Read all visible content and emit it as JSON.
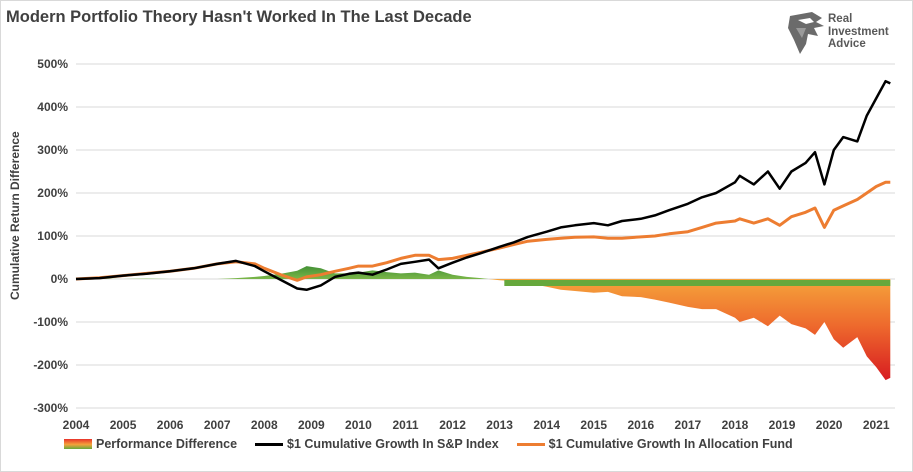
{
  "title": "Modern Portfolio Theory Hasn't Worked In The Last Decade",
  "logo": {
    "lines": [
      "Real",
      "Investment",
      "Advice"
    ],
    "icon": "eagle-head-icon"
  },
  "colors": {
    "sp": "#000000",
    "fund": "#ed7d31",
    "diff_neg_top": "#f5a33b",
    "diff_neg_bottom": "#d71920",
    "diff_pos": "#4c9a3a",
    "grid": "#d9d9d9",
    "text": "#404040"
  },
  "chart_data": {
    "type": "line",
    "title": "Modern Portfolio Theory Hasn't Worked In The Last Decade",
    "xlabel": "",
    "ylabel": "Cumulative Return Difference",
    "ylim": [
      -300,
      500
    ],
    "y_ticks": [
      "500%",
      "400%",
      "300%",
      "200%",
      "100%",
      "0%",
      "-100%",
      "-200%",
      "-300%"
    ],
    "y_tick_values": [
      500,
      400,
      300,
      200,
      100,
      0,
      -100,
      -200,
      -300
    ],
    "x_ticks": [
      "2004",
      "2005",
      "2006",
      "2007",
      "2008",
      "2009",
      "2010",
      "2011",
      "2012",
      "2013",
      "2014",
      "2015",
      "2016",
      "2017",
      "2018",
      "2019",
      "2020",
      "2021"
    ],
    "xlim": [
      2004,
      2021.4
    ],
    "grid": true,
    "legend_position": "bottom",
    "x": [
      2004.0,
      2004.5,
      2005.0,
      2005.5,
      2006.0,
      2006.5,
      2007.0,
      2007.4,
      2007.8,
      2008.0,
      2008.4,
      2008.7,
      2008.9,
      2009.2,
      2009.5,
      2009.8,
      2010.0,
      2010.3,
      2010.6,
      2010.9,
      2011.2,
      2011.5,
      2011.7,
      2012.0,
      2012.3,
      2012.6,
      2013.0,
      2013.3,
      2013.6,
      2014.0,
      2014.3,
      2014.6,
      2015.0,
      2015.3,
      2015.6,
      2016.0,
      2016.3,
      2016.6,
      2017.0,
      2017.3,
      2017.6,
      2018.0,
      2018.1,
      2018.4,
      2018.7,
      2018.95,
      2019.2,
      2019.5,
      2019.7,
      2019.9,
      2020.1,
      2020.3,
      2020.6,
      2020.8,
      2021.0,
      2021.2,
      2021.3
    ],
    "series": [
      {
        "name": "$1 Cumulative Growth In S&P Index",
        "values": [
          0,
          2,
          8,
          12,
          18,
          25,
          35,
          42,
          30,
          18,
          -5,
          -22,
          -25,
          -15,
          5,
          12,
          15,
          10,
          22,
          35,
          40,
          45,
          25,
          38,
          50,
          60,
          75,
          85,
          98,
          110,
          120,
          125,
          130,
          125,
          135,
          140,
          148,
          160,
          175,
          190,
          200,
          225,
          240,
          220,
          250,
          210,
          250,
          270,
          295,
          220,
          300,
          330,
          320,
          380,
          420,
          460,
          455
        ]
      },
      {
        "name": "$1 Cumulative Growth In Allocation Fund",
        "values": [
          0,
          3,
          8,
          13,
          18,
          25,
          35,
          40,
          35,
          25,
          8,
          -3,
          5,
          10,
          18,
          25,
          30,
          30,
          38,
          48,
          55,
          55,
          45,
          48,
          55,
          62,
          72,
          80,
          88,
          92,
          95,
          97,
          98,
          95,
          95,
          98,
          100,
          105,
          110,
          120,
          130,
          135,
          140,
          130,
          140,
          125,
          145,
          155,
          165,
          120,
          160,
          170,
          185,
          200,
          215,
          225,
          225
        ]
      },
      {
        "name": "Performance Difference",
        "values": [
          0,
          1,
          0,
          1,
          0,
          0,
          0,
          2,
          5,
          7,
          13,
          19,
          30,
          25,
          13,
          13,
          15,
          20,
          16,
          13,
          15,
          10,
          20,
          10,
          5,
          2,
          -3,
          -5,
          -10,
          -18,
          -25,
          -28,
          -32,
          -30,
          -40,
          -42,
          -48,
          -55,
          -65,
          -70,
          -70,
          -90,
          -100,
          -90,
          -110,
          -85,
          -105,
          -115,
          -130,
          -100,
          -140,
          -160,
          -135,
          -180,
          -205,
          -235,
          -230
        ]
      }
    ]
  },
  "legend": [
    {
      "label": "Performance Difference",
      "type": "area"
    },
    {
      "label": "$1 Cumulative Growth In S&P Index",
      "type": "line",
      "color": "#000000"
    },
    {
      "label": "$1 Cumulative Growth In Allocation Fund",
      "type": "line",
      "color": "#ed7d31"
    }
  ]
}
